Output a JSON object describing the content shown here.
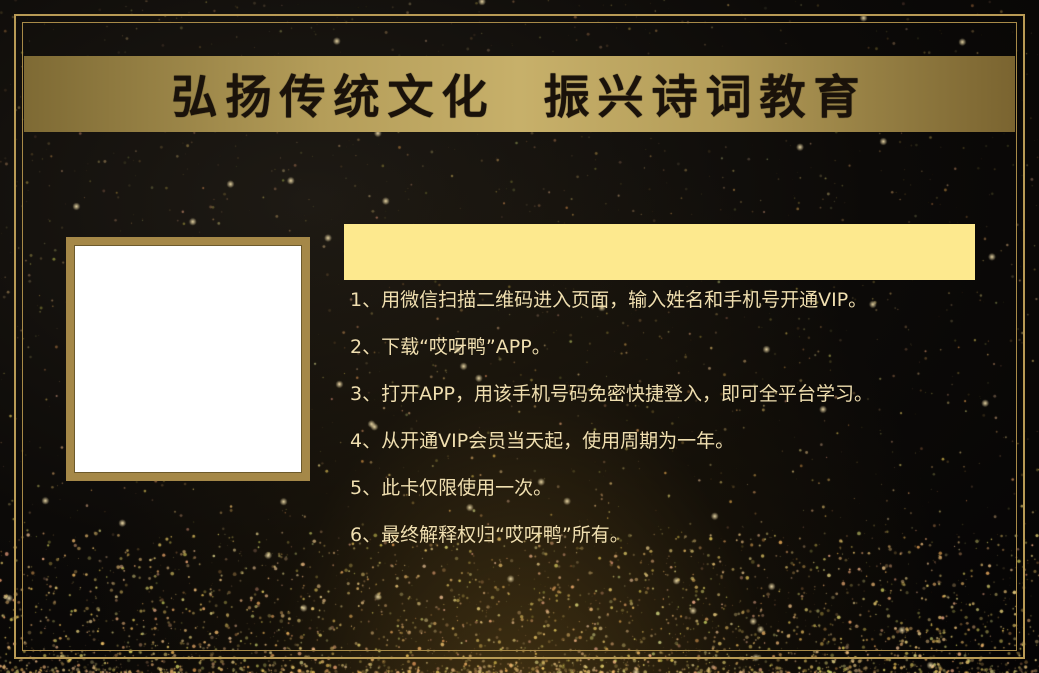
{
  "banner": {
    "title": "弘扬传统文化  振兴诗词教育"
  },
  "photo_box": {
    "icon": "photo-placeholder"
  },
  "info_bar": {
    "icon": "yellow-blank-bar"
  },
  "rules": [
    "1、用微信扫描二维码进入页面，输入姓名和手机号开通VIP。",
    "2、下载“哎呀鸭”APP。",
    "3、打开APP，用该手机号码免密快捷登入，即可全平台学习。",
    "4、从开通VIP会员当天起，使用周期为一年。",
    "5、此卡仅限使用一次。",
    "6、最终解释权归“哎呀鸭”所有。"
  ],
  "colors": {
    "background": "#0c0a08",
    "gold": "#b89a55",
    "banner_gold": "#c7b06a",
    "yellow_bar": "#fde98e",
    "text": "#f0dfb0"
  }
}
